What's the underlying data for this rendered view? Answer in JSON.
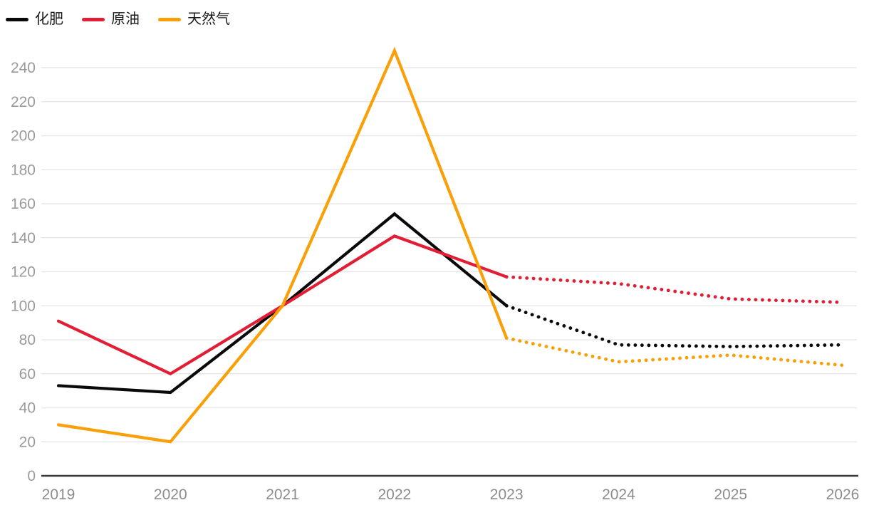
{
  "page": {
    "background": "#ffffff"
  },
  "legend": {
    "items": [
      {
        "key": "fertilizer",
        "label": "化肥",
        "color": "#0a0a0a"
      },
      {
        "key": "crude-oil",
        "label": "原油",
        "color": "#e11e35"
      },
      {
        "key": "natural-gas",
        "label": "天然气",
        "color": "#f9a008"
      }
    ]
  },
  "chart_data": {
    "type": "line",
    "title": "",
    "x": [
      2019,
      2020,
      2021,
      2022,
      2023,
      2024,
      2025,
      2026
    ],
    "x_labels": [
      "2019",
      "2020",
      "2021",
      "2022",
      "2023",
      "2024",
      "2025",
      "2026"
    ],
    "ylim": [
      0,
      250
    ],
    "yticks": [
      0,
      20,
      40,
      60,
      80,
      100,
      120,
      140,
      160,
      180,
      200,
      220,
      240
    ],
    "grid": "horizontal",
    "legend_position": "top-left",
    "series": [
      {
        "key": "fertilizer",
        "name": "化肥",
        "color": "#0a0a0a",
        "solid": {
          "x": [
            2019,
            2020,
            2021,
            2022,
            2023
          ],
          "values": [
            53,
            49,
            100,
            154,
            100
          ]
        },
        "dotted": {
          "x": [
            2023,
            2024,
            2025,
            2026
          ],
          "values": [
            100,
            77,
            76,
            77
          ]
        }
      },
      {
        "key": "crude-oil",
        "name": "原油",
        "color": "#e11e35",
        "solid": {
          "x": [
            2019,
            2020,
            2021,
            2022,
            2023
          ],
          "values": [
            91,
            60,
            100,
            141,
            117
          ]
        },
        "dotted": {
          "x": [
            2023,
            2024,
            2025,
            2026
          ],
          "values": [
            117,
            113,
            104,
            102
          ]
        }
      },
      {
        "key": "natural-gas",
        "name": "天然气",
        "color": "#f9a008",
        "solid": {
          "x": [
            2019,
            2020,
            2021,
            2022,
            2023
          ],
          "values": [
            30,
            20,
            100,
            250,
            81
          ]
        },
        "dotted": {
          "x": [
            2023,
            2024,
            2025,
            2026
          ],
          "values": [
            81,
            67,
            71,
            65
          ]
        }
      }
    ],
    "axis_colors": {
      "tick_label_y": "#9a9a9a",
      "tick_label_x": "#8c8c8c",
      "gridline": "#e8e8e8",
      "baseline": "#383838"
    }
  }
}
